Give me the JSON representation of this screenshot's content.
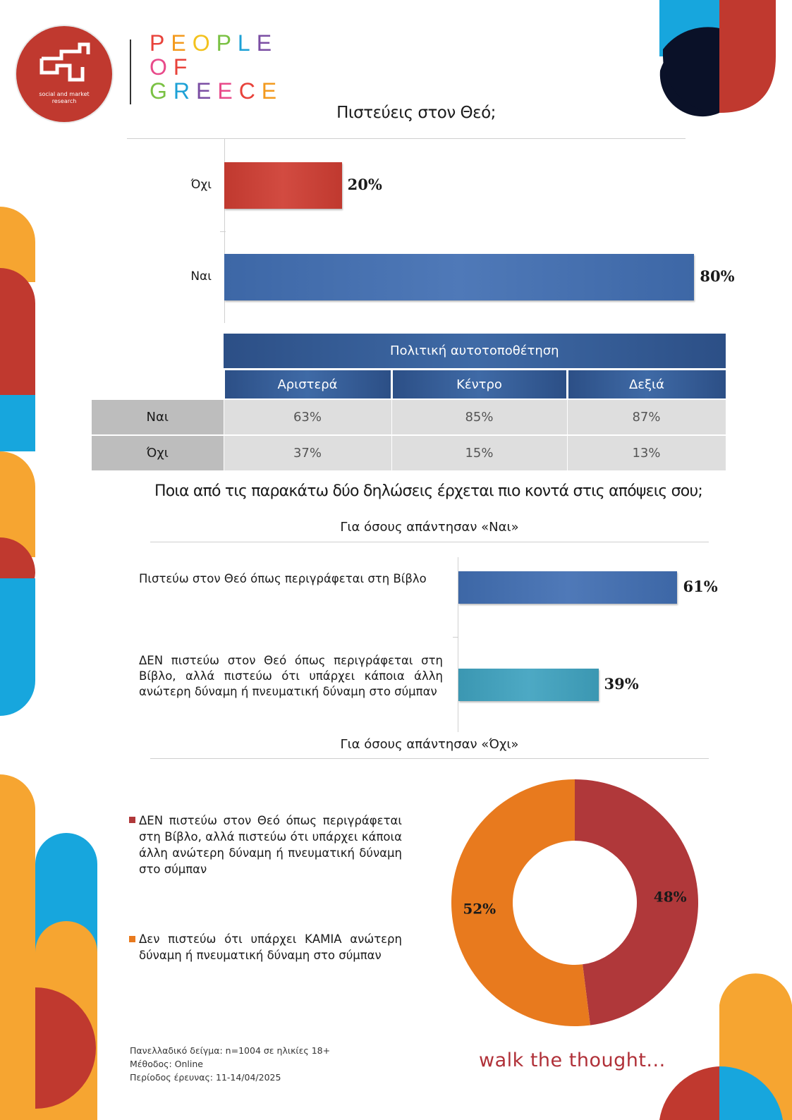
{
  "brand": {
    "logo_sub_line1": "social and market",
    "logo_sub_line2": "research",
    "series_title_line1": "PEOPLE",
    "series_title_line2": "OF",
    "series_title_line3": "GREECE",
    "title_colors": [
      "#e8423a",
      "#f39a1e",
      "#f3c21e",
      "#7ac143",
      "#1da1d6",
      "#7b4ea3",
      "#e84a8a",
      "#e8423a",
      "#f39a1e",
      "#1da1d6",
      "#e84a8a"
    ],
    "logo_icon": "ged-logo-mark",
    "tagline": "walk the thought..."
  },
  "colors": {
    "red": "#c0392f",
    "blue": "#3d67a6",
    "teal": "#3b97b2",
    "orange": "#e87a1e",
    "deco_orange": "#f6a531",
    "deco_blue": "#17a6dd",
    "deco_navy": "#0a1128"
  },
  "question1": "Πιστεύεις στον Θεό;",
  "chart_data": [
    {
      "type": "bar",
      "orientation": "horizontal",
      "title": "Πιστεύεις στον Θεό;",
      "categories": [
        "Όχι",
        "Ναι"
      ],
      "values": [
        20,
        80
      ],
      "value_labels": [
        "20%",
        "80%"
      ],
      "colors": [
        "#c0392f",
        "#3d67a6"
      ],
      "xlim": [
        0,
        100
      ]
    },
    {
      "type": "bar",
      "orientation": "horizontal",
      "title": "Για όσους απάντησαν «Ναι»",
      "categories": [
        "Πιστεύω στον Θεό όπως περιγράφεται στη Βίβλο",
        "ΔΕΝ πιστεύω στον Θεό όπως περιγράφεται στη Βίβλο, αλλά πιστεύω ότι υπάρχει κάποια άλλη ανώτερη δύναμη ή πνευματική δύναμη στο σύμπαν"
      ],
      "values": [
        61,
        39
      ],
      "value_labels": [
        "61%",
        "39%"
      ],
      "colors": [
        "#3d67a6",
        "#3b97b2"
      ],
      "xlim": [
        0,
        100
      ]
    },
    {
      "type": "pie",
      "donut": true,
      "title": "Για όσους απάντησαν «Όχι»",
      "categories": [
        "ΔΕΝ πιστεύω στον Θεό όπως περιγράφεται στη Βίβλο, αλλά πιστεύω ότι υπάρχει κάποια άλλη ανώτερη δύναμη ή πνευματική δύναμη στο σύμπαν",
        "Δεν πιστεύω ότι υπάρχει ΚΑΜΙΑ ανώτερη δύναμη ή πνευματική δύναμη στο σύμπαν"
      ],
      "values": [
        48,
        52
      ],
      "value_labels": [
        "48%",
        "52%"
      ],
      "colors": [
        "#b0383a",
        "#e87a1e"
      ],
      "legend": "left"
    },
    {
      "type": "table",
      "title": "Πολιτική αυτοτοποθέτηση",
      "columns": [
        "Αριστερά",
        "Κέντρο",
        "Δεξιά"
      ],
      "rows": [
        {
          "label": "Ναι",
          "values": [
            "63%",
            "85%",
            "87%"
          ]
        },
        {
          "label": "Όχι",
          "values": [
            "37%",
            "15%",
            "13%"
          ]
        }
      ]
    }
  ],
  "table": {
    "header": "Πολιτική αυτοτοποθέτηση",
    "columns": [
      "Αριστερά",
      "Κέντρο",
      "Δεξιά"
    ],
    "rows": [
      {
        "label": "Ναι",
        "values": [
          "63%",
          "85%",
          "87%"
        ]
      },
      {
        "label": "Όχι",
        "values": [
          "37%",
          "15%",
          "13%"
        ]
      }
    ]
  },
  "question2": "Ποια από τις παρακάτω δύο δηλώσεις έρχεται πιο κοντά στις απόψεις σου;",
  "yes_title": "Για όσους απάντησαν «Ναι»",
  "no_title": "Για όσους απάντησαν «Όχι»",
  "footer": {
    "sample": "Πανελλαδικό δείγμα: n=1004 σε ηλικίες 18+",
    "method": "Μέθοδος: Online",
    "period": "Περίοδος έρευνας: 11-14/04/2025"
  }
}
